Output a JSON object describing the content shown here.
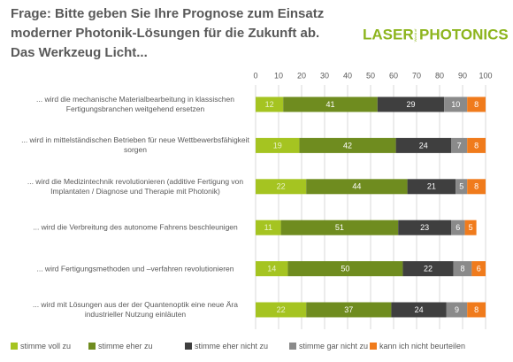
{
  "chart_data": {
    "type": "stacked-bar-horizontal",
    "title": "Frage: Bitte geben Sie Ihre Prognose zum Einsatz moderner Photonik-Lösungen für die Zukunft ab. Das Werkzeug Licht...",
    "categories": [
      "... wird die mechanische Materialbearbeitung in klassischen Fertigungsbranchen weitgehend ersetzen",
      "... wird in mittelständischen Betrieben für neue Wettbewerbsfähigkeit sorgen",
      "... wird die Medizintechnik revolutionieren (additive Fertigung von Implantaten / Diagnose und Therapie mit Photonik)",
      "... wird die Verbreitung des autonome Fahrens beschleunigen",
      "... wird Fertigungsmethoden und –verfahren revolutionieren",
      "... wird mit Lösungen aus der der Quantenoptik eine neue Ära industrieller Nutzung einläuten"
    ],
    "series": [
      {
        "name": "stimme voll zu",
        "color": "#a5c421",
        "values": [
          12,
          19,
          22,
          11,
          14,
          22
        ]
      },
      {
        "name": "stimme eher zu",
        "color": "#6f8c1f",
        "values": [
          41,
          42,
          44,
          51,
          50,
          37
        ]
      },
      {
        "name": "stimme eher nicht zu",
        "color": "#3f3f3f",
        "values": [
          29,
          24,
          21,
          23,
          22,
          24
        ]
      },
      {
        "name": "stimme gar nicht zu",
        "color": "#8a8a8a",
        "values": [
          10,
          7,
          5,
          6,
          8,
          9
        ]
      },
      {
        "name": "kann ich nicht beurteilen",
        "color": "#f07b1c",
        "values": [
          8,
          8,
          8,
          5,
          6,
          8
        ]
      }
    ],
    "xlim": [
      0,
      100
    ],
    "xticks": [
      0,
      10,
      20,
      30,
      40,
      50,
      60,
      70,
      80,
      90,
      100
    ],
    "grid": true,
    "legend": "bottom"
  },
  "logo": {
    "left": "LASER",
    "middle": "World of",
    "right": "PHOTONICS"
  }
}
